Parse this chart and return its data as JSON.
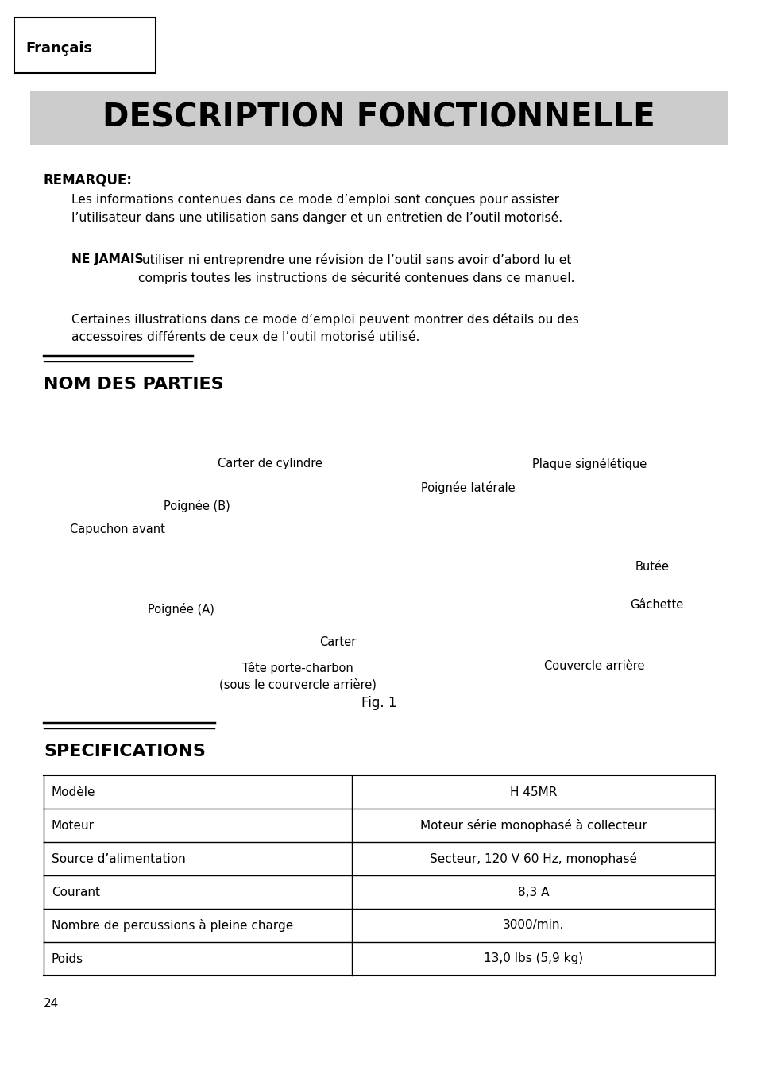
{
  "background_color": "#ffffff",
  "tab_label": "Français",
  "main_title": "DESCRIPTION FONCTIONNELLE",
  "main_title_bg": "#cccccc",
  "remarque_label": "REMARQUE:",
  "para1": "Les informations contenues dans ce mode d’emploi sont conçues pour assister\nl’utilisateur dans une utilisation sans danger et un entretien de l’outil motorisé.",
  "ne_jamais_bold": "NE JAMAIS",
  "para2_rest": " utiliser ni entreprendre une révision de l’outil sans avoir d’abord lu et\ncompris toutes les instructions de sécurité contenues dans ce manuel.",
  "para3": "Certaines illustrations dans ce mode d’emploi peuvent montrer des détails ou des\naccessoires différents de ceux de l’outil motorisé utilisé.",
  "nom_des_parties": "NOM DES PARTIES",
  "fig_label": "Fig. 1",
  "specifications_title": "SPECIFICATIONS",
  "table_data": [
    [
      "Modèle",
      "H 45MR"
    ],
    [
      "Moteur",
      "Moteur série monophasé à collecteur"
    ],
    [
      "Source d’alimentation",
      "Secteur, 120 V 60 Hz, monophasé"
    ],
    [
      "Courant",
      "8,3 A"
    ],
    [
      "Nombre de percussions à pleine charge",
      "3000/min."
    ],
    [
      "Poids",
      "13,0 lbs (5,9 kg)"
    ]
  ],
  "page_number": "24"
}
